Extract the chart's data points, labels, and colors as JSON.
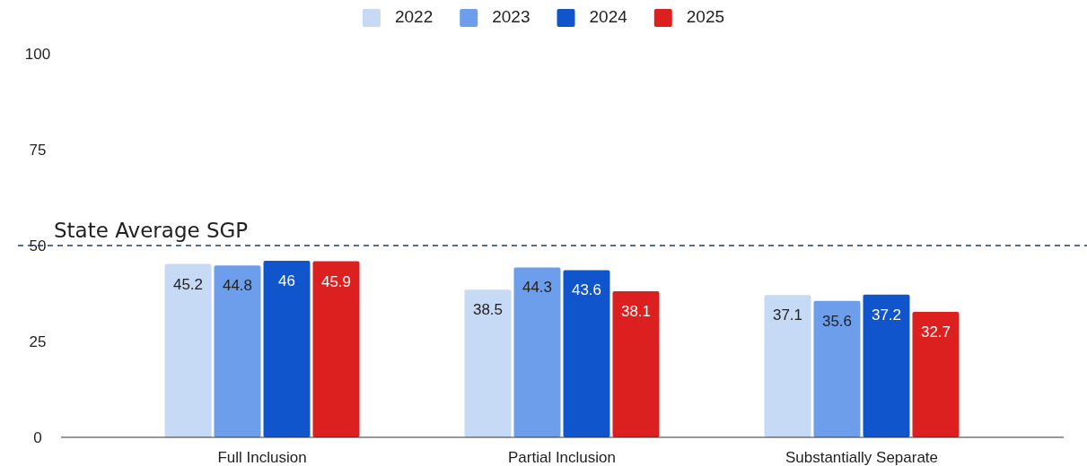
{
  "chart_data": {
    "type": "bar",
    "categories": [
      "Full Inclusion",
      "Partial Inclusion",
      "Substantially Separate"
    ],
    "series": [
      {
        "name": "2022",
        "color": "#c6d9f5",
        "values": [
          45.2,
          38.5,
          37.1
        ]
      },
      {
        "name": "2023",
        "color": "#6d9eeb",
        "values": [
          44.8,
          44.3,
          35.6
        ]
      },
      {
        "name": "2024",
        "color": "#1155cc",
        "values": [
          46,
          43.6,
          37.2
        ]
      },
      {
        "name": "2025",
        "color": "#dc1f1f",
        "values": [
          45.9,
          38.1,
          32.7
        ]
      }
    ],
    "ylim": [
      0,
      100
    ],
    "yticks": [
      0,
      25,
      50,
      75,
      100
    ],
    "grid": false,
    "legend": "top",
    "data_labels": true,
    "ref_lines": [
      {
        "axis": "y",
        "value": 50,
        "label": "State Average SGP",
        "color": "#1c3d6e",
        "line_style": "dashed"
      }
    ]
  }
}
